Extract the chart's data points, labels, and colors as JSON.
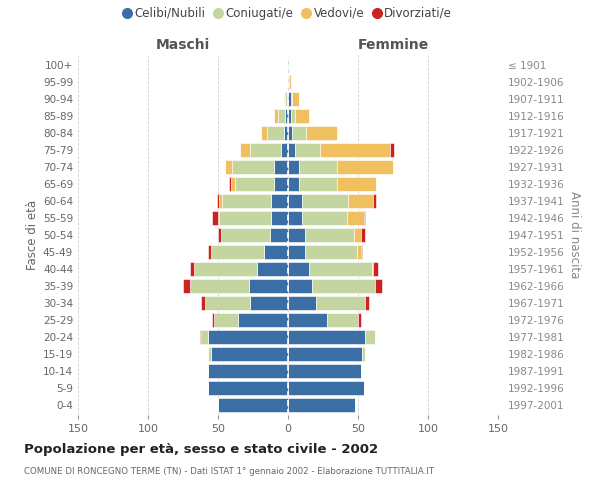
{
  "age_groups": [
    "0-4",
    "5-9",
    "10-14",
    "15-19",
    "20-24",
    "25-29",
    "30-34",
    "35-39",
    "40-44",
    "45-49",
    "50-54",
    "55-59",
    "60-64",
    "65-69",
    "70-74",
    "75-79",
    "80-84",
    "85-89",
    "90-94",
    "95-99",
    "100+"
  ],
  "birth_years": [
    "1997-2001",
    "1992-1996",
    "1987-1991",
    "1982-1986",
    "1977-1981",
    "1972-1976",
    "1967-1971",
    "1962-1966",
    "1957-1961",
    "1952-1956",
    "1947-1951",
    "1942-1946",
    "1937-1941",
    "1932-1936",
    "1927-1931",
    "1922-1926",
    "1917-1921",
    "1912-1916",
    "1907-1911",
    "1902-1906",
    "≤ 1901"
  ],
  "maschi_celibi": [
    50,
    57,
    57,
    55,
    57,
    36,
    27,
    28,
    22,
    17,
    13,
    12,
    12,
    10,
    10,
    5,
    3,
    2,
    1,
    1,
    1
  ],
  "maschi_coniugati": [
    0,
    0,
    0,
    2,
    5,
    17,
    32,
    42,
    45,
    38,
    35,
    37,
    35,
    28,
    30,
    22,
    12,
    5,
    1,
    0,
    0
  ],
  "maschi_vedovi": [
    0,
    0,
    0,
    0,
    0,
    0,
    0,
    0,
    0,
    0,
    0,
    1,
    2,
    3,
    5,
    7,
    4,
    3,
    1,
    0,
    0
  ],
  "maschi_divorziati": [
    0,
    0,
    0,
    0,
    1,
    1,
    3,
    5,
    3,
    2,
    2,
    4,
    2,
    1,
    0,
    0,
    0,
    0,
    0,
    0,
    0
  ],
  "femmine_nubili": [
    48,
    54,
    52,
    53,
    55,
    28,
    20,
    17,
    15,
    12,
    12,
    10,
    10,
    8,
    8,
    5,
    3,
    2,
    2,
    1,
    1
  ],
  "femmine_coniugate": [
    0,
    0,
    0,
    2,
    7,
    22,
    35,
    45,
    45,
    37,
    35,
    32,
    33,
    27,
    27,
    18,
    10,
    3,
    1,
    0,
    0
  ],
  "femmine_vedove": [
    0,
    0,
    0,
    0,
    0,
    0,
    0,
    0,
    1,
    3,
    5,
    12,
    18,
    28,
    40,
    50,
    22,
    10,
    5,
    1,
    0
  ],
  "femmine_divorziate": [
    0,
    0,
    0,
    0,
    0,
    2,
    3,
    5,
    3,
    1,
    3,
    1,
    2,
    0,
    0,
    3,
    0,
    0,
    0,
    0,
    0
  ],
  "colors": {
    "celibi": "#3a6ea5",
    "coniugati": "#c5d5a0",
    "vedovi": "#f0c060",
    "divorziati": "#cc2222"
  },
  "title": "Popolazione per età, sesso e stato civile - 2002",
  "subtitle": "COMUNE DI RONCEGNO TERME (TN) - Dati ISTAT 1° gennaio 2002 - Elaborazione TUTTITALIA.IT",
  "xlabel_left": "Maschi",
  "xlabel_right": "Femmine",
  "ylabel_left": "Fasce di età",
  "ylabel_right": "Anni di nascita",
  "xlim": 150,
  "bg_color": "#ffffff",
  "grid_color": "#cccccc",
  "legend_labels": [
    "Celibi/Nubili",
    "Coniugati/e",
    "Vedovi/e",
    "Divorziati/e"
  ]
}
